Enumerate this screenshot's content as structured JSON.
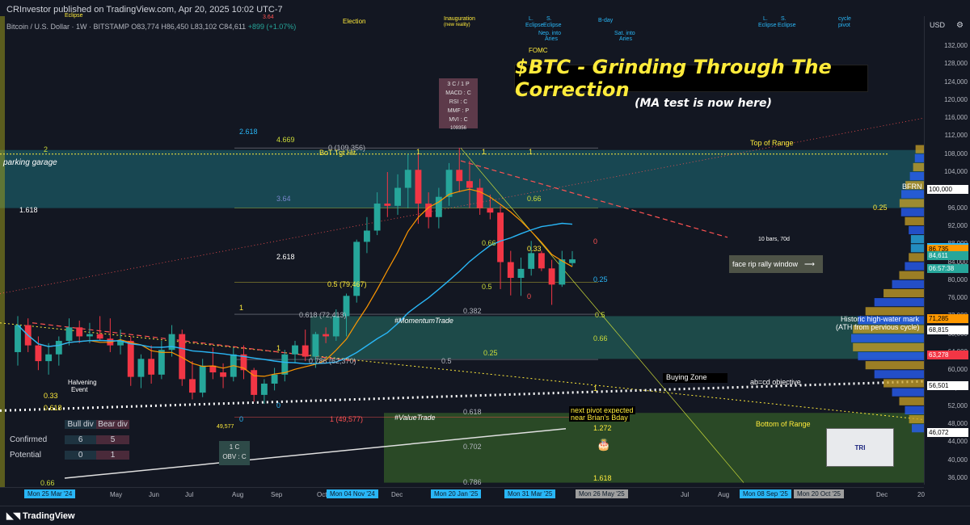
{
  "header": {
    "publisher": "CRInvestor published on TradingView.com, Apr 20, 2025 10:02 UTC-7",
    "symbol": "Bitcoin / U.S. Dollar · 1W · BITSTAMP",
    "ohlc": "O83,774 H86,450 L83,102 C84,611",
    "change": "+899 (+1.07%)"
  },
  "title": "$BTC - Grinding Through The Correction",
  "subtitle": "(MA test is now here)",
  "score_box": [
    "3 C / 1 P",
    "MACD : C",
    "RSI : C",
    "MMF : P",
    "MVI : C"
  ],
  "score_box_footer": "109356",
  "annotations": {
    "parking_garage": "parking garage",
    "bof_tgt": "BoT Tgt Hit",
    "top_of_range": "Top of Range",
    "bottom_of_range": "Bottom of Range",
    "momentum_trade": "#MomentumTrade",
    "value_trade": "#ValueTrade",
    "historic_hwm": "Historic high-water mark",
    "ath_prev": "(ATH from pervious cycle)",
    "face_rip": "face rip rally window",
    "buying_zone": "Buying Zone",
    "abcd": "ab=cd objective",
    "next_pivot": "next pivot expected",
    "near_bday": "near Brian's Bday",
    "ten_bars": "10 bars, 70d",
    "bfrn": "BFRN",
    "halvening": "Halvening",
    "event": "Event",
    "election": "Election",
    "inauguration": "Inauguration",
    "new_reality": "(new reality)",
    "fomc": "FOMC",
    "l_eclipse_1": "L.",
    "l_eclipse_1b": "Eclipse",
    "s_eclipse_1": "S.",
    "s_eclipse_1b": "Eclipse",
    "nep_into": "Nep. into",
    "aries_1": "Aries",
    "b_day": "B-day",
    "sat_into": "Sat. into",
    "aries_2": "Aries",
    "l_eclipse_2": "L.",
    "l_eclipse_2b": "Eclipse",
    "s_eclipse_2": "S.",
    "s_eclipse_2b": "Eclipse",
    "cycle_pivot": "cycle",
    "cycle_pivot_b": "pivot",
    "eclipse_top": "Eclipse",
    "val_364": "3.64",
    "obv_1c": "1 C",
    "obv_c": "OBV : C"
  },
  "fib_labels": [
    {
      "t": "2.618"
    },
    {
      "t": "4.669"
    },
    {
      "t": "0 (109,356)"
    },
    {
      "t": "3.64"
    },
    {
      "t": "1.618"
    },
    {
      "t": "2.618"
    },
    {
      "t": "0.5 (79,467)"
    },
    {
      "t": "0.618 (72,413)"
    },
    {
      "t": "0.786 (62,370)"
    },
    {
      "t": "1 (49,577)"
    },
    {
      "t": "49,577"
    },
    {
      "t": "0.66"
    },
    {
      "t": "0.66"
    },
    {
      "t": "0.33"
    },
    {
      "t": "0.25"
    },
    {
      "t": "0.5"
    },
    {
      "t": "0.382"
    },
    {
      "t": "0.5"
    },
    {
      "t": "0.66"
    },
    {
      "t": "0.25"
    },
    {
      "t": "0.5"
    },
    {
      "t": "0.618"
    },
    {
      "t": "0.702"
    },
    {
      "t": "1.272"
    },
    {
      "t": "1.618"
    },
    {
      "t": "0.786"
    },
    {
      "t": "0.33"
    },
    {
      "t": "0.618"
    },
    {
      "t": "0.66"
    },
    {
      "t": "0.25"
    },
    {
      "t": "2"
    },
    {
      "t": "1"
    },
    {
      "t": "1"
    },
    {
      "t": "1"
    },
    {
      "t": "1"
    },
    {
      "t": "1"
    },
    {
      "t": "0"
    },
    {
      "t": "0"
    },
    {
      "t": "0"
    },
    {
      "t": "0"
    },
    {
      "t": "1"
    }
  ],
  "divergence_table": {
    "headers": [
      "",
      "Bull div",
      "Bear div"
    ],
    "rows": [
      {
        "label": "Confirmed",
        "bull": "6",
        "bear": "5"
      },
      {
        "label": "Potential",
        "bull": "0",
        "bear": "1"
      }
    ]
  },
  "price_axis": {
    "currency": "USD",
    "ticks": [
      "132,000",
      "128,000",
      "124,000",
      "120,000",
      "116,000",
      "112,000",
      "108,000",
      "104,000",
      "100,000",
      "96,000",
      "92,000",
      "88,000",
      "84,000",
      "80,000",
      "76,000",
      "72,000",
      "68,000",
      "64,000",
      "60,000",
      "56,000",
      "52,000",
      "48,000",
      "44,000",
      "40,000",
      "36,000"
    ],
    "tags": [
      {
        "v": "100,000",
        "color": "#ffffff",
        "bg": "#ffffff",
        "fg": "#000000"
      },
      {
        "v": "87,088",
        "bg": "#29b6f6",
        "fg": "#000000"
      },
      {
        "v": "86,735",
        "bg": "#ff9800",
        "fg": "#000000"
      },
      {
        "v": "84,611",
        "bg": "#26a69a",
        "fg": "#ffffff"
      },
      {
        "v": "06:57:38",
        "bg": "#26a69a",
        "fg": "#ffffff"
      },
      {
        "v": "71,285",
        "bg": "#ff9800",
        "fg": "#000000"
      },
      {
        "v": "68,815",
        "bg": "#ffffff",
        "fg": "#000000"
      },
      {
        "v": "63,278",
        "bg": "#f23645",
        "fg": "#ffffff"
      },
      {
        "v": "56,501",
        "bg": "#ffffff",
        "fg": "#000000"
      },
      {
        "v": "46,072",
        "bg": "#ffffff",
        "fg": "#000000"
      }
    ]
  },
  "time_axis": {
    "labels": [
      "May",
      "Jun",
      "Jul",
      "Aug",
      "Sep",
      "Oct",
      "Dec",
      "Jul",
      "Aug",
      "Dec",
      "20"
    ],
    "badges": [
      "Mon 25 Mar '24",
      "Mon 04 Nov '24",
      "Mon 20 Jan '25",
      "Mon 31 Mar '25",
      "Mon 26 May '25",
      "Mon 08 Sep '25",
      "Mon 20 Oct '25"
    ]
  },
  "footer": {
    "brand": "TradingView"
  },
  "chart_data": {
    "type": "candlestick",
    "interval": "1W",
    "ylim": [
      34000,
      136000
    ],
    "candles": [
      [
        64000,
        72000,
        61000,
        70000
      ],
      [
        70000,
        71500,
        64000,
        65500
      ],
      [
        65500,
        67500,
        60000,
        62000
      ],
      [
        62000,
        66000,
        59000,
        63500
      ],
      [
        63500,
        67500,
        61000,
        66500
      ],
      [
        66500,
        71500,
        65500,
        69500
      ],
      [
        69500,
        71000,
        66000,
        67500
      ],
      [
        67500,
        70500,
        66000,
        68000
      ],
      [
        68000,
        72000,
        66500,
        67000
      ],
      [
        67000,
        71500,
        64000,
        65500
      ],
      [
        65500,
        69000,
        63500,
        66500
      ],
      [
        66500,
        67500,
        56500,
        58500
      ],
      [
        58500,
        63500,
        56000,
        62500
      ],
      [
        62500,
        65500,
        57000,
        59000
      ],
      [
        59000,
        66500,
        58000,
        64500
      ],
      [
        64500,
        70000,
        63000,
        68000
      ],
      [
        68000,
        69000,
        56500,
        58000
      ],
      [
        58000,
        62000,
        53500,
        55000
      ],
      [
        55000,
        62500,
        54000,
        61000
      ],
      [
        61000,
        65000,
        58000,
        59500
      ],
      [
        59500,
        61500,
        56000,
        58500
      ],
      [
        58500,
        65000,
        57500,
        63500
      ],
      [
        63500,
        65500,
        58000,
        60000
      ],
      [
        60000,
        60500,
        53000,
        54500
      ],
      [
        54500,
        58000,
        52500,
        57000
      ],
      [
        57000,
        60500,
        55500,
        59000
      ],
      [
        59000,
        64500,
        57500,
        63500
      ],
      [
        63500,
        66500,
        61500,
        65500
      ],
      [
        65500,
        69000,
        62000,
        63000
      ],
      [
        63000,
        68500,
        60500,
        68000
      ],
      [
        68000,
        69500,
        66000,
        67500
      ],
      [
        67500,
        73500,
        66500,
        72000
      ],
      [
        72000,
        77000,
        67500,
        76500
      ],
      [
        76500,
        89000,
        75000,
        88500
      ],
      [
        88500,
        94000,
        86000,
        91000
      ],
      [
        91000,
        99500,
        90000,
        97000
      ],
      [
        97000,
        104000,
        94000,
        96500
      ],
      [
        96500,
        103500,
        94500,
        100500
      ],
      [
        100500,
        108000,
        96000,
        104500
      ],
      [
        104500,
        108300,
        92500,
        97000
      ],
      [
        97000,
        99500,
        91500,
        94000
      ],
      [
        94000,
        100500,
        91500,
        98500
      ],
      [
        98500,
        106000,
        96500,
        104500
      ],
      [
        104500,
        109356,
        99500,
        102000
      ],
      [
        102000,
        106500,
        96000,
        100500
      ],
      [
        100500,
        102500,
        94500,
        96000
      ],
      [
        96000,
        99000,
        93500,
        95000
      ],
      [
        95000,
        96500,
        78000,
        84000
      ],
      [
        84000,
        86500,
        76600,
        80500
      ],
      [
        80500,
        85000,
        76500,
        82500
      ],
      [
        82500,
        88700,
        81000,
        86000
      ],
      [
        86000,
        86500,
        82000,
        82600
      ],
      [
        82600,
        84500,
        74500,
        79000
      ],
      [
        79000,
        86500,
        78500,
        84600
      ],
      [
        83774,
        86450,
        83102,
        84611
      ]
    ],
    "moving_averages": [
      {
        "name": "Weekly MA (blue)",
        "color": "#29b6f6"
      },
      {
        "name": "Weekly MA (orange)",
        "color": "#ff9800"
      }
    ],
    "zones": {
      "top_of_range": 108000,
      "bottom_of_range": 49577,
      "hwm": 71285
    },
    "xlabel": "",
    "ylabel": ""
  }
}
